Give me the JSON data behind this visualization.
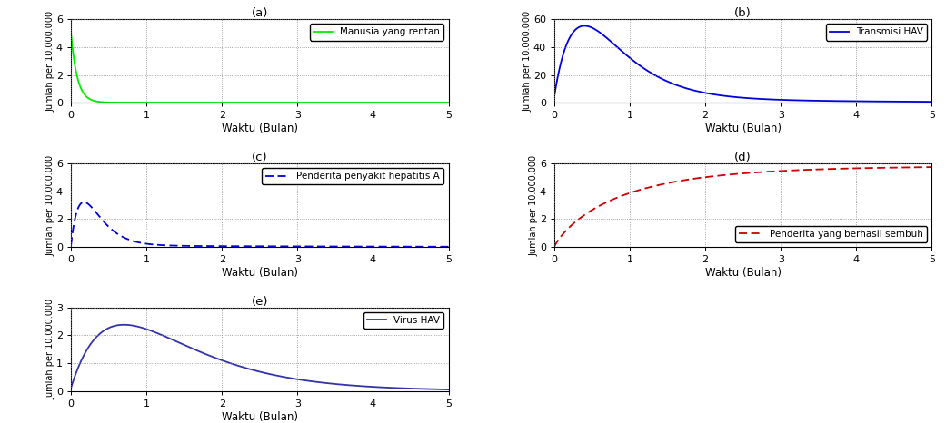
{
  "title_a": "(a)",
  "title_b": "(b)",
  "title_c": "(c)",
  "title_d": "(d)",
  "title_e": "(e)",
  "xlabel": "Waktu (Bulan)",
  "ylabel": "Jumlah per 10.000.000",
  "xlim": [
    0,
    5
  ],
  "ylim_a": [
    0,
    6
  ],
  "ylim_b": [
    0,
    60
  ],
  "ylim_c": [
    0,
    6
  ],
  "ylim_d": [
    0,
    6
  ],
  "ylim_e": [
    0,
    3
  ],
  "yticks_a": [
    0,
    2,
    4,
    6
  ],
  "yticks_b": [
    0,
    20,
    40,
    60
  ],
  "yticks_c": [
    0,
    2,
    4,
    6
  ],
  "yticks_d": [
    0,
    2,
    4,
    6
  ],
  "yticks_e": [
    0,
    1,
    2,
    3
  ],
  "xticks": [
    0,
    1,
    2,
    3,
    4,
    5
  ],
  "legend_a": "Manusia yang rentan",
  "legend_b": "Transmisi HAV",
  "legend_c": "Penderita penyakit hepatitis A",
  "legend_d": "Penderita yang berhasil sembuh",
  "legend_e": "Virus HAV",
  "color_a": "#00EE00",
  "color_b": "#0000DD",
  "color_c": "#0000DD",
  "color_d": "#CC0000",
  "color_e": "#3333AA",
  "bg_color": "#FFFFFF"
}
